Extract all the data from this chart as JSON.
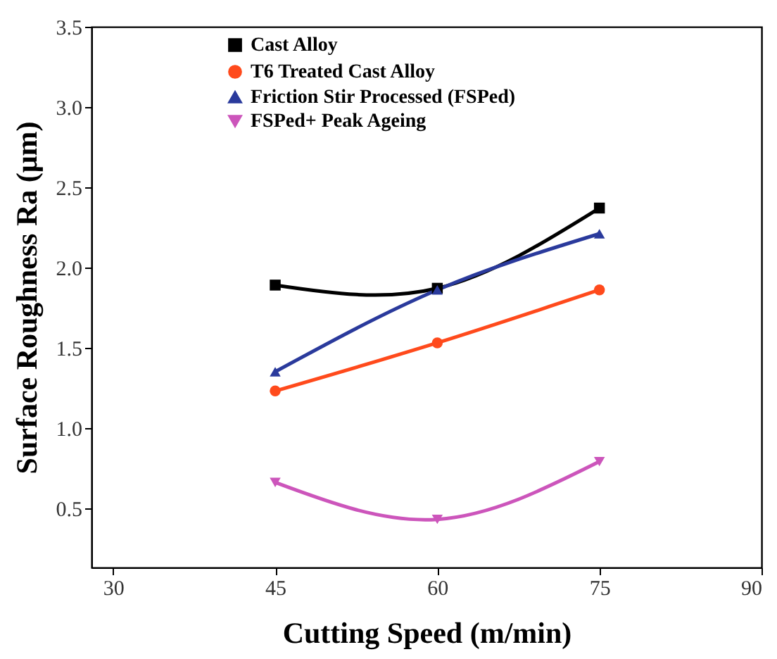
{
  "chart_data": {
    "type": "line",
    "xlabel": "Cutting Speed (m/min)",
    "ylabel": "Surface Roughness Ra (μm)",
    "x": [
      45,
      60,
      75
    ],
    "xlim": [
      28,
      90
    ],
    "xticks": [
      30,
      45,
      60,
      75,
      90
    ],
    "ylim": [
      0.13,
      3.5
    ],
    "yticks": [
      0.5,
      {
        "value": 1,
        "label": "1.0"
      },
      1.5,
      {
        "value": 2,
        "label": "2.0"
      },
      2.5,
      {
        "value": 3,
        "label": "3.0"
      },
      3.5
    ],
    "grid": false,
    "legend": "top left",
    "series": [
      {
        "name": "Cast Alloy",
        "color": "#000000",
        "marker": "square",
        "values": [
          1.89,
          1.87,
          2.37
        ]
      },
      {
        "name": "T6 Treated Cast Alloy",
        "color": "#ff4a1c",
        "marker": "circle",
        "values": [
          1.23,
          1.53,
          1.86
        ]
      },
      {
        "name": "Friction Stir Processed (FSPed)",
        "color": "#2a3a9c",
        "marker": "triangle",
        "values": [
          1.35,
          1.86,
          2.21
        ]
      },
      {
        "name": "FSPed+ Peak Ageing",
        "color": "#cc55bb",
        "marker": "triangle-down",
        "values": [
          0.66,
          0.43,
          0.79
        ]
      }
    ]
  }
}
